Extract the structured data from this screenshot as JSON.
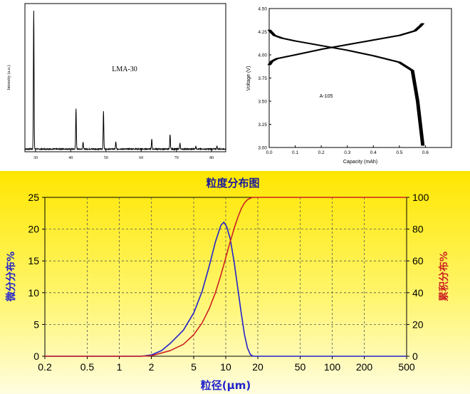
{
  "chart_data": [
    {
      "type": "line",
      "label": "LMA-30",
      "ylabel": "Intensity (a.u.)",
      "xlim": [
        27,
        84
      ],
      "x_ticks": [
        30,
        40,
        50,
        60,
        70,
        80
      ],
      "x_tick_labels": [
        "30",
        "40",
        "50",
        "60",
        "70",
        "80"
      ],
      "peaks": [
        {
          "x": 29.5,
          "y": 95
        },
        {
          "x": 41.5,
          "y": 28
        },
        {
          "x": 43.5,
          "y": 5
        },
        {
          "x": 49.3,
          "y": 26
        },
        {
          "x": 52.8,
          "y": 5
        },
        {
          "x": 63.0,
          "y": 7
        },
        {
          "x": 68.2,
          "y": 10
        },
        {
          "x": 71.0,
          "y": 4
        },
        {
          "x": 75.5,
          "y": 2
        },
        {
          "x": 81.5,
          "y": 2
        }
      ]
    },
    {
      "type": "line",
      "label": "A-105",
      "xlabel": "Capacity (mAh)",
      "ylabel": "Voltage (V)",
      "xlim": [
        0,
        0.7
      ],
      "ylim": [
        3.0,
        4.5
      ],
      "x_ticks": [
        0.0,
        0.1,
        0.2,
        0.3,
        0.4,
        0.5,
        0.6
      ],
      "x_tick_labels": [
        "0.0",
        "0.1",
        "0.2",
        "0.3",
        "0.4",
        "0.5",
        "0.6"
      ],
      "y_ticks": [
        3.0,
        3.25,
        3.5,
        3.75,
        4.0,
        4.25,
        4.5
      ],
      "y_tick_labels": [
        "3.00",
        "3.25",
        "3.50",
        "3.75",
        "4.00",
        "4.25",
        "4.50"
      ],
      "series": [
        {
          "x": [
            0.0,
            0.02,
            0.05,
            0.1,
            0.2,
            0.3,
            0.4,
            0.5,
            0.55,
            0.57,
            0.59
          ],
          "y": [
            4.27,
            4.21,
            4.18,
            4.15,
            4.1,
            4.05,
            3.99,
            3.92,
            3.83,
            3.5,
            3.02
          ]
        },
        {
          "x": [
            0.0,
            0.01,
            0.03,
            0.1,
            0.2,
            0.3,
            0.4,
            0.5,
            0.56,
            0.58,
            0.59
          ],
          "y": [
            3.89,
            3.93,
            3.96,
            4.0,
            4.06,
            4.11,
            4.16,
            4.21,
            4.26,
            4.31,
            4.34
          ]
        }
      ]
    },
    {
      "type": "line",
      "title": "粒度分布图",
      "xlabel": "粒径(μm)",
      "ylabel_left": "微分分布%",
      "ylabel_right": "累积分布%",
      "x_scale": "log",
      "xlim": [
        0.2,
        500
      ],
      "ylim_left": [
        0,
        25
      ],
      "ylim_right": [
        0,
        100
      ],
      "grid": true,
      "x_ticks": [
        0.2,
        0.5,
        1,
        2,
        5,
        10,
        20,
        50,
        100,
        200,
        500
      ],
      "x_tick_labels": [
        "0.2",
        "0.5",
        "1",
        "2",
        "5",
        "10",
        "20",
        "50",
        "100",
        "200",
        "500"
      ],
      "y_left_ticks": [
        0,
        5,
        10,
        15,
        20,
        25
      ],
      "y_left_tick_labels": [
        "0",
        "5",
        "10",
        "15",
        "20",
        "25"
      ],
      "y_right_ticks": [
        0,
        20,
        40,
        60,
        80,
        100
      ],
      "y_right_tick_labels": [
        "0",
        "20",
        "40",
        "60",
        "80",
        "100"
      ],
      "series": [
        {
          "axis": "left",
          "color": "#2222cc",
          "x": [
            0.2,
            1.6,
            2.0,
            2.5,
            3.0,
            4.0,
            5.0,
            6.0,
            7.0,
            8.0,
            9.0,
            9.6,
            10.2,
            11.0,
            12.0,
            13.0,
            14.0,
            15.0,
            16.0,
            17.0,
            18.0,
            500
          ],
          "y": [
            0,
            0,
            0.2,
            0.9,
            2.0,
            4.1,
            6.8,
            10.2,
            14.2,
            18.0,
            20.6,
            21.1,
            20.4,
            18.5,
            14.8,
            10.6,
            6.7,
            3.4,
            1.3,
            0.3,
            0,
            0
          ]
        },
        {
          "axis": "right",
          "color": "#cc2222",
          "x": [
            0.2,
            1.6,
            2.0,
            3.0,
            4.0,
            5.0,
            6.0,
            7.0,
            8.0,
            9.0,
            10.0,
            11.0,
            12.0,
            13.0,
            14.0,
            15.0,
            16.0,
            17.0,
            18.0,
            500
          ],
          "y": [
            0,
            0,
            0.3,
            3.5,
            7.5,
            13.5,
            21.0,
            30.0,
            40.0,
            51.0,
            62.0,
            72.0,
            80.5,
            87.5,
            93.0,
            96.5,
            98.5,
            99.5,
            100,
            100
          ]
        }
      ]
    }
  ]
}
